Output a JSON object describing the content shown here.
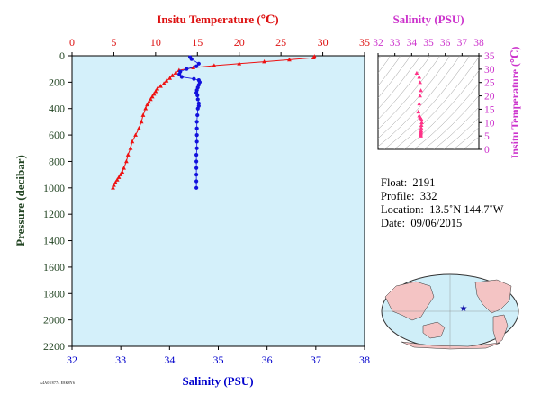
{
  "main_chart": {
    "top_axis_label": "Insitu Temperature (℃)",
    "bottom_axis_label": "Salinity (PSU)",
    "left_axis_label": "Pressure (decibar)",
    "temp_ticks": [
      "0",
      "5",
      "10",
      "15",
      "20",
      "25",
      "30",
      "35"
    ],
    "sal_ticks": [
      "32",
      "33",
      "34",
      "35",
      "36",
      "37",
      "38"
    ],
    "pressure_ticks": [
      "0",
      "200",
      "400",
      "600",
      "800",
      "1000",
      "1200",
      "1400",
      "1600",
      "1800",
      "2000",
      "2200"
    ]
  },
  "ts_chart": {
    "top_axis_label": "Salinity (PSU)",
    "right_axis_label": "Insitu Temperature (℃)",
    "sal_ticks": [
      "32",
      "33",
      "34",
      "35",
      "36",
      "37",
      "38"
    ],
    "temp_ticks": [
      "35",
      "30",
      "25",
      "20",
      "15",
      "10",
      "5",
      "0"
    ]
  },
  "float_info": {
    "float_label": "Float:",
    "float_value": "2191",
    "profile_label": "Profile:",
    "profile_value": "332",
    "location_label": "Location:",
    "location_value": "13.5˚N  144.7˚W",
    "date_label": "Date:",
    "date_value": "09/06/2015"
  },
  "footer_text": "A4A0Y8774  E8K8Y6",
  "colors": {
    "temperature": "#ee1111",
    "salinity": "#1111dd",
    "plot_bg": "#d4f0fa",
    "temp_axis_text": "#dd1111",
    "sal_axis_text": "#0000cc",
    "pressure_axis_text": "#224422",
    "ts_axis": "#cc33cc",
    "ts_points": "#ff3388",
    "land": "#f4c4c4",
    "ocean": "#cfeef8"
  },
  "chart_data": [
    {
      "type": "line",
      "title": "",
      "xlabel": "Insitu Temperature (℃)",
      "ylabel": "Pressure (decibar)",
      "xlim": [
        0,
        35
      ],
      "ylim": [
        2200,
        0
      ],
      "series": [
        {
          "name": "Insitu Temperature (℃)",
          "x": [
            29.0,
            28.9,
            26.0,
            23.0,
            20.0,
            17.0,
            14.5,
            12.8,
            12.4,
            12.0,
            11.7,
            11.3,
            11.0,
            10.6,
            10.2,
            10.0,
            9.8,
            9.6,
            9.4,
            9.2,
            9.0,
            8.8,
            8.5,
            8.3,
            8.0,
            7.6,
            7.2,
            7.0,
            6.7,
            6.5,
            6.2,
            6.0,
            5.8,
            5.6,
            5.4,
            5.2,
            5.0,
            4.9
          ],
          "y": [
            5,
            15,
            30,
            45,
            60,
            75,
            90,
            110,
            130,
            150,
            170,
            190,
            210,
            230,
            250,
            270,
            290,
            310,
            330,
            350,
            370,
            400,
            450,
            500,
            550,
            600,
            650,
            700,
            750,
            800,
            850,
            880,
            900,
            920,
            940,
            960,
            980,
            1000
          ]
        },
        {
          "name": "Salinity (PSU)",
          "xlim": [
            32,
            38
          ],
          "x": [
            34.42,
            34.45,
            34.6,
            34.55,
            34.35,
            34.22,
            34.2,
            34.25,
            34.5,
            34.6,
            34.62,
            34.6,
            34.58,
            34.56,
            34.55,
            34.57,
            34.58,
            34.6,
            34.6,
            34.58,
            34.57,
            34.56,
            34.56,
            34.56,
            34.56,
            34.56,
            34.55,
            34.55,
            34.55,
            34.55,
            34.55,
            34.55
          ],
          "y": [
            10,
            25,
            60,
            80,
            100,
            120,
            140,
            160,
            175,
            185,
            200,
            220,
            240,
            260,
            280,
            300,
            330,
            360,
            380,
            400,
            450,
            500,
            550,
            600,
            650,
            700,
            750,
            800,
            850,
            900,
            950,
            1000
          ]
        }
      ]
    },
    {
      "type": "scatter",
      "title": "",
      "xlabel": "Salinity (PSU)",
      "ylabel": "Insitu Temperature (℃)",
      "xlim": [
        32,
        38
      ],
      "ylim": [
        0,
        35
      ],
      "values_x": [
        34.3,
        34.45,
        34.5,
        34.55,
        34.5,
        34.45,
        34.4,
        34.45,
        34.5,
        34.55,
        34.6,
        34.6,
        34.58,
        34.57,
        34.56,
        34.56,
        34.55,
        34.55,
        34.55
      ],
      "values_y": [
        28.5,
        27.0,
        25.0,
        22.0,
        20.0,
        17.0,
        14.0,
        12.5,
        12.0,
        11.5,
        11.0,
        10.0,
        9.0,
        8.0,
        7.0,
        6.5,
        6.0,
        5.5,
        5.0
      ]
    }
  ]
}
